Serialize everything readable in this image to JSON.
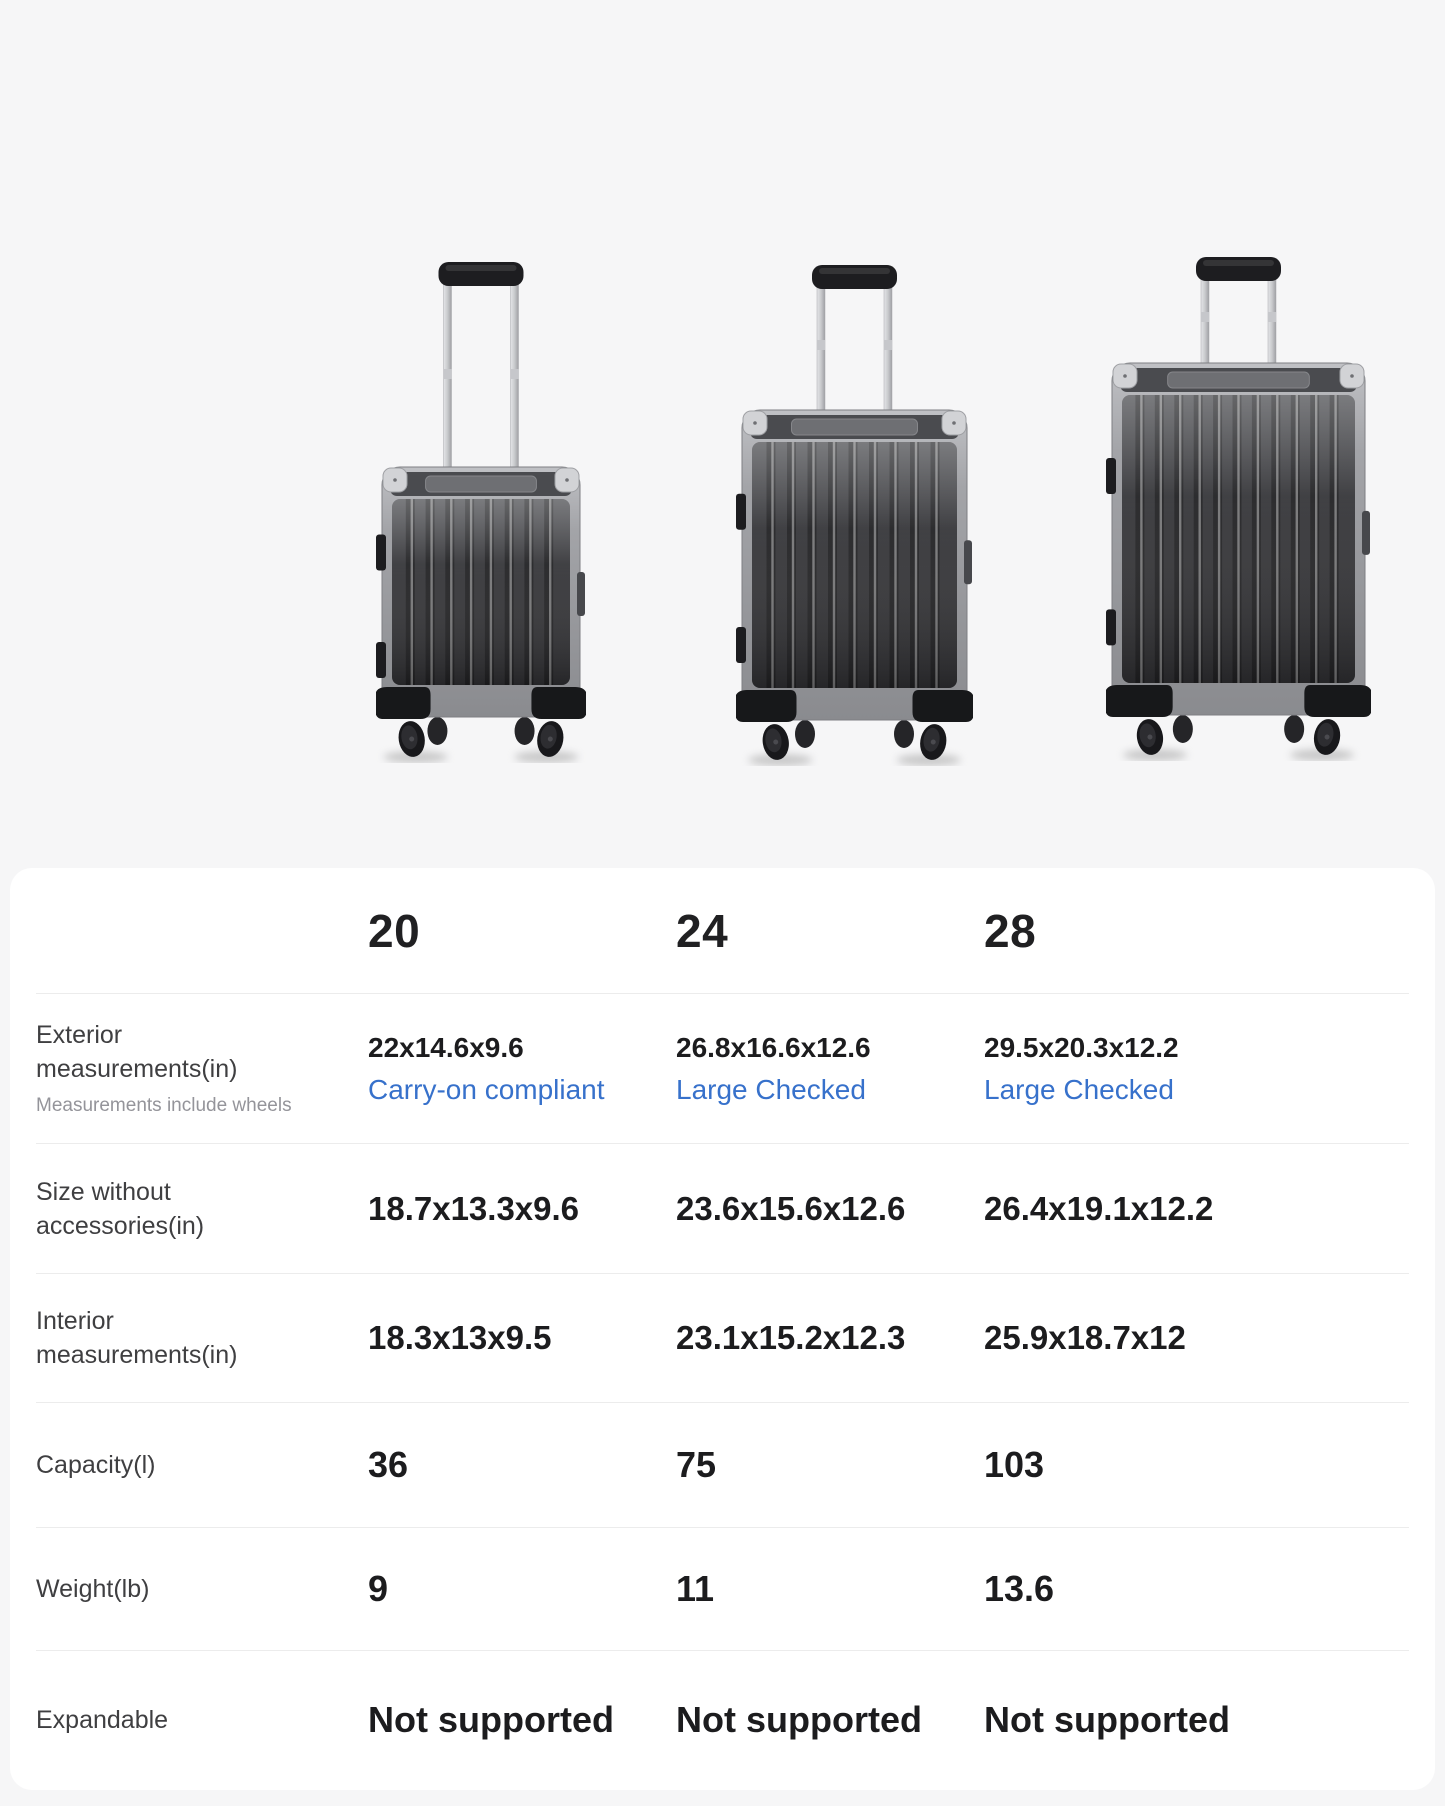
{
  "hero": {
    "products": [
      {
        "name": "20 inch suitcase"
      },
      {
        "name": "24 inch suitcase"
      },
      {
        "name": "28 inch suitcase"
      }
    ]
  },
  "table": {
    "size_headers": [
      "20",
      "24",
      "28"
    ],
    "rows": [
      {
        "label_lines": [
          "Exterior",
          "measurements(in)"
        ],
        "sublabel": "Measurements include wheels",
        "cells": [
          {
            "value": "22x14.6x9.6",
            "link": "Carry-on compliant"
          },
          {
            "value": "26.8x16.6x12.6",
            "link": "Large Checked"
          },
          {
            "value": "29.5x20.3x12.2",
            "link": "Large Checked"
          }
        ]
      },
      {
        "label_lines": [
          "Size without",
          "accessories(in)"
        ],
        "cells": [
          {
            "value": "18.7x13.3x9.6"
          },
          {
            "value": "23.6x15.6x12.6"
          },
          {
            "value": "26.4x19.1x12.2"
          }
        ]
      },
      {
        "label_lines": [
          "Interior",
          "measurements(in)"
        ],
        "cells": [
          {
            "value": "18.3x13x9.5"
          },
          {
            "value": "23.1x15.2x12.3"
          },
          {
            "value": "25.9x18.7x12"
          }
        ]
      },
      {
        "label_lines": [
          "Capacity(l)"
        ],
        "cells": [
          {
            "value": "36"
          },
          {
            "value": "75"
          },
          {
            "value": "103"
          }
        ]
      },
      {
        "label_lines": [
          "Weight(lb)"
        ],
        "cells": [
          {
            "value": "9"
          },
          {
            "value": "11"
          },
          {
            "value": "13.6"
          }
        ]
      },
      {
        "label_lines": [
          "Expandable"
        ],
        "cells": [
          {
            "value": "Not supported"
          },
          {
            "value": "Not supported"
          },
          {
            "value": "Not supported"
          }
        ]
      }
    ]
  },
  "colors": {
    "page_background": "#f6f6f7",
    "card_background": "#ffffff",
    "link_blue": "#3771cb",
    "value_text": "#1c1c1e",
    "label_text": "#3f3f41",
    "sublabel_text": "#94949a",
    "divider": "#ececec"
  }
}
